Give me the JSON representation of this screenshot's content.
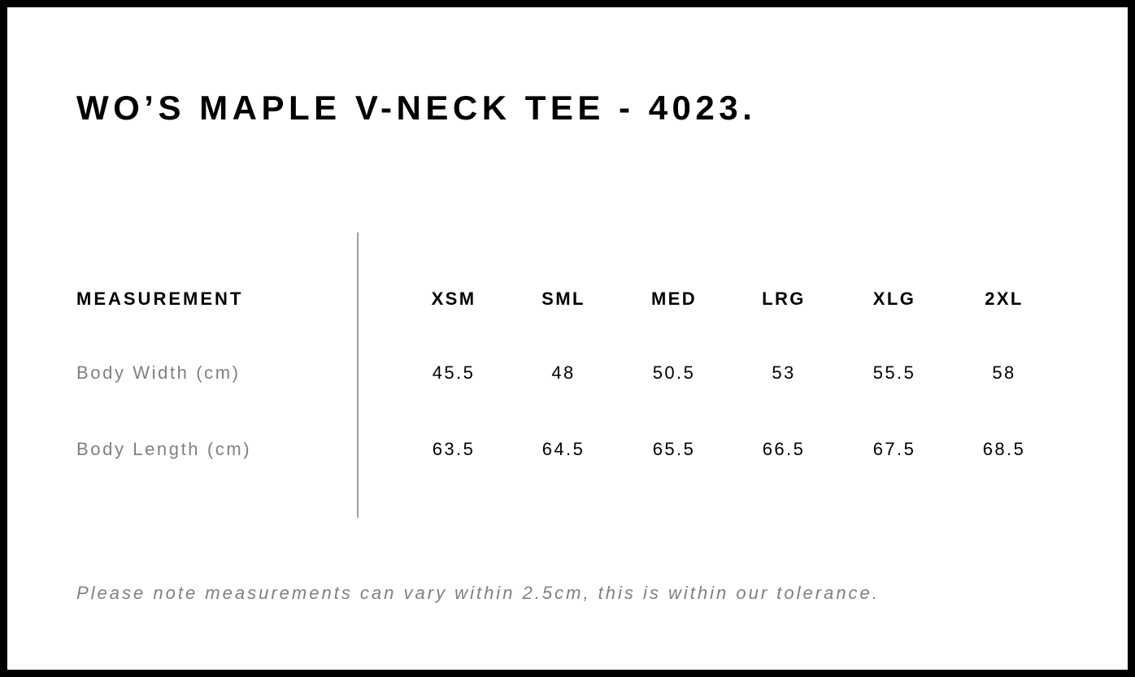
{
  "title": "WO’S MAPLE V-NECK TEE - 4023.",
  "table": {
    "header_label": "MEASUREMENT",
    "sizes": [
      "XSM",
      "SML",
      "MED",
      "LRG",
      "XLG",
      "2XL"
    ],
    "rows": [
      {
        "label": "Body Width (cm)",
        "values": [
          "45.5",
          "48",
          "50.5",
          "53",
          "55.5",
          "58"
        ]
      },
      {
        "label": "Body Length (cm)",
        "values": [
          "63.5",
          "64.5",
          "65.5",
          "66.5",
          "67.5",
          "68.5"
        ]
      }
    ]
  },
  "note": "Please note measurements can vary within 2.5cm, this is within our tolerance.",
  "colors": {
    "border": "#000000",
    "label_gray": "#808080",
    "divider": "#a0a0a0"
  }
}
